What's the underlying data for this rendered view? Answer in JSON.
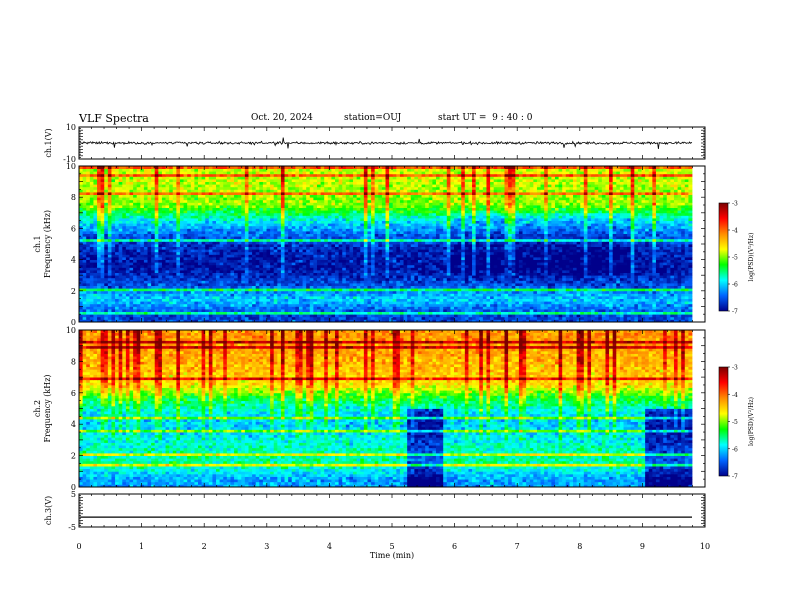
{
  "header": {
    "title": "VLF Spectra",
    "date": "Oct. 20, 2024",
    "station": "station=OUJ",
    "start": "start UT =  9 : 40 : 0"
  },
  "colorbar": {
    "label": "log(PSD)(V²/Hz)",
    "ticks": [
      "-3",
      "-4",
      "-5",
      "-6",
      "-7"
    ],
    "colors": [
      "#7a0000",
      "#ff0000",
      "#ff8c00",
      "#ffff00",
      "#00ff00",
      "#00ffff",
      "#0064ff",
      "#00008b"
    ]
  },
  "chart_data": [
    {
      "type": "line",
      "panel": "ch1-waveform",
      "ylabel": "ch.1(V)",
      "ylim": [
        -10,
        10
      ],
      "yticks": [
        "10",
        "-10"
      ],
      "approx_level": 0,
      "approx_noise_amplitude": 1.5
    },
    {
      "type": "heatmap",
      "panel": "ch1-spectrogram",
      "ylabel": "ch.1\nFrequency (kHz)",
      "ylim": [
        0,
        10
      ],
      "yticks": [
        "0",
        "2",
        "4",
        "6",
        "8",
        "10"
      ],
      "color_scale": {
        "min": -7,
        "max": -3
      },
      "approx_profile": [
        {
          "f": 0.5,
          "logpsd": -6.6
        },
        {
          "f": 1.5,
          "logpsd": -6.0
        },
        {
          "f": 2.5,
          "logpsd": -6.6
        },
        {
          "f": 3.5,
          "logpsd": -6.9
        },
        {
          "f": 4.5,
          "logpsd": -6.8
        },
        {
          "f": 5.5,
          "logpsd": -6.5
        },
        {
          "f": 6.5,
          "logpsd": -5.9
        },
        {
          "f": 7.5,
          "logpsd": -5.0
        },
        {
          "f": 8.5,
          "logpsd": -4.9
        },
        {
          "f": 9.5,
          "logpsd": -4.8
        }
      ]
    },
    {
      "type": "heatmap",
      "panel": "ch2-spectrogram",
      "ylabel": "ch.2\nFrequency (kHz)",
      "ylim": [
        0,
        10
      ],
      "yticks": [
        "0",
        "2",
        "4",
        "6",
        "8",
        "10"
      ],
      "color_scale": {
        "min": -7,
        "max": -3
      },
      "approx_profile": [
        {
          "f": 0.5,
          "logpsd": -6.2
        },
        {
          "f": 1.5,
          "logpsd": -5.6
        },
        {
          "f": 2.5,
          "logpsd": -5.7
        },
        {
          "f": 3.5,
          "logpsd": -6.0
        },
        {
          "f": 4.5,
          "logpsd": -6.0
        },
        {
          "f": 5.5,
          "logpsd": -5.5
        },
        {
          "f": 6.5,
          "logpsd": -4.6
        },
        {
          "f": 7.5,
          "logpsd": -4.4
        },
        {
          "f": 8.5,
          "logpsd": -4.3
        },
        {
          "f": 9.5,
          "logpsd": -4.2
        }
      ]
    },
    {
      "type": "line",
      "panel": "ch3-waveform",
      "ylabel": "ch.3(V)",
      "ylim": [
        -5,
        5
      ],
      "yticks": [
        "5",
        "-5"
      ],
      "approx_level": -2
    }
  ],
  "xaxis": {
    "label": "Time (min)",
    "range": [
      0,
      10
    ],
    "ticks": [
      "0",
      "1",
      "2",
      "3",
      "4",
      "5",
      "6",
      "7",
      "8",
      "9",
      "10"
    ]
  }
}
